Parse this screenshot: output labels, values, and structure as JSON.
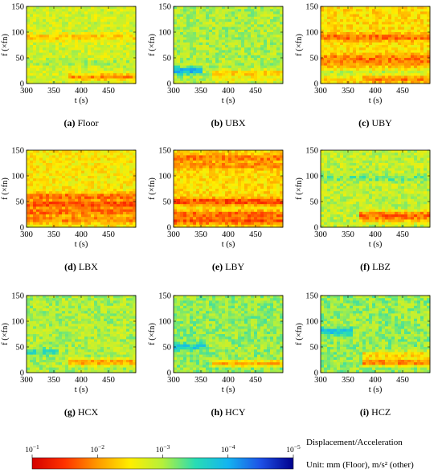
{
  "chart_data": [
    {
      "type": "heatmap",
      "id": "a",
      "caption_letter": "(a)",
      "caption_name": "Floor",
      "xlabel": "t (s)",
      "ylabel": "f (×fn)",
      "xlim": [
        300,
        500
      ],
      "ylim": [
        0,
        150
      ],
      "x_ticks": [
        "300",
        "350",
        "400",
        "450"
      ],
      "y_ticks": [
        "0",
        "50",
        "100",
        "150"
      ],
      "base_level": 2.8,
      "bands": [
        {
          "f": 90,
          "delta": -0.6
        },
        {
          "f": 13,
          "delta": -0.9,
          "t_from": 375
        },
        {
          "f": 40,
          "delta": 0.3
        }
      ]
    },
    {
      "type": "heatmap",
      "id": "b",
      "caption_letter": "(b)",
      "caption_name": "UBX",
      "xlabel": "t (s)",
      "ylabel": "f (×fn)",
      "xlim": [
        300,
        500
      ],
      "ylim": [
        0,
        150
      ],
      "x_ticks": [
        "300",
        "350",
        "400",
        "450"
      ],
      "y_ticks": [
        "0",
        "50",
        "100",
        "150"
      ],
      "base_level": 3.0,
      "bands": [
        {
          "f": 20,
          "delta": -0.8,
          "t_from": 370
        },
        {
          "f": 8,
          "delta": -0.4,
          "t_from": 370
        },
        {
          "f": 25,
          "delta": 1.2,
          "t_to": 355
        }
      ]
    },
    {
      "type": "heatmap",
      "id": "c",
      "caption_letter": "(c)",
      "caption_name": "UBY",
      "xlabel": "t (s)",
      "ylabel": "f (×fn)",
      "xlim": [
        300,
        500
      ],
      "ylim": [
        0,
        150
      ],
      "x_ticks": [
        "300",
        "350",
        "400",
        "450"
      ],
      "y_ticks": [
        "0",
        "50",
        "100",
        "150"
      ],
      "base_level": 2.4,
      "bands": [
        {
          "f": 90,
          "delta": -0.8
        },
        {
          "f": 50,
          "delta": -0.6
        },
        {
          "f": 40,
          "delta": -0.5
        },
        {
          "f": 20,
          "delta": 0.6
        },
        {
          "f": 10,
          "delta": -0.7,
          "t_from": 375
        }
      ]
    },
    {
      "type": "heatmap",
      "id": "d",
      "caption_letter": "(d)",
      "caption_name": "LBX",
      "xlabel": "t (s)",
      "ylabel": "f (×fn)",
      "xlim": [
        300,
        500
      ],
      "ylim": [
        0,
        150
      ],
      "x_ticks": [
        "300",
        "350",
        "400",
        "450"
      ],
      "y_ticks": [
        "0",
        "50",
        "100",
        "150"
      ],
      "base_level": 2.5,
      "bands": [
        {
          "f": 60,
          "delta": -0.9
        },
        {
          "f": 45,
          "delta": -1.1
        },
        {
          "f": 30,
          "delta": -0.9
        },
        {
          "f": 15,
          "delta": -0.7
        }
      ]
    },
    {
      "type": "heatmap",
      "id": "e",
      "caption_letter": "(e)",
      "caption_name": "LBY",
      "xlabel": "t (s)",
      "ylabel": "f (×fn)",
      "xlim": [
        300,
        500
      ],
      "ylim": [
        0,
        150
      ],
      "x_ticks": [
        "300",
        "350",
        "400",
        "450"
      ],
      "y_ticks": [
        "0",
        "50",
        "100",
        "150"
      ],
      "base_level": 2.4,
      "bands": [
        {
          "f": 135,
          "delta": -0.7
        },
        {
          "f": 120,
          "delta": -0.5
        },
        {
          "f": 50,
          "delta": -1.0
        },
        {
          "f": 25,
          "delta": -0.8
        },
        {
          "f": 12,
          "delta": -0.8
        }
      ]
    },
    {
      "type": "heatmap",
      "id": "f",
      "caption_letter": "(f)",
      "caption_name": "LBZ",
      "xlabel": "t (s)",
      "ylabel": "f (×fn)",
      "xlim": [
        300,
        500
      ],
      "ylim": [
        0,
        150
      ],
      "x_ticks": [
        "300",
        "350",
        "400",
        "450"
      ],
      "y_ticks": [
        "0",
        "50",
        "100",
        "150"
      ],
      "base_level": 2.9,
      "bands": [
        {
          "f": 25,
          "delta": -1.2,
          "t_from": 370
        },
        {
          "f": 15,
          "delta": -0.9,
          "t_from": 370
        },
        {
          "f": 95,
          "delta": 0.4
        }
      ]
    },
    {
      "type": "heatmap",
      "id": "g",
      "caption_letter": "(g)",
      "caption_name": "HCX",
      "xlabel": "t (s)",
      "ylabel": "f (×fn)",
      "xlim": [
        300,
        500
      ],
      "ylim": [
        0,
        150
      ],
      "x_ticks": [
        "300",
        "350",
        "400",
        "450"
      ],
      "y_ticks": [
        "0",
        "50",
        "100",
        "150"
      ],
      "base_level": 3.0,
      "bands": [
        {
          "f": 20,
          "delta": -1.1,
          "t_from": 375
        },
        {
          "f": 40,
          "delta": 0.6,
          "t_to": 360
        }
      ]
    },
    {
      "type": "heatmap",
      "id": "h",
      "caption_letter": "(h)",
      "caption_name": "HCY",
      "xlabel": "t (s)",
      "ylabel": "f (×fn)",
      "xlim": [
        300,
        500
      ],
      "ylim": [
        0,
        150
      ],
      "x_ticks": [
        "300",
        "350",
        "400",
        "450"
      ],
      "y_ticks": [
        "0",
        "50",
        "100",
        "150"
      ],
      "base_level": 3.1,
      "bands": [
        {
          "f": 18,
          "delta": -1.1,
          "t_from": 370
        },
        {
          "f": 50,
          "delta": 0.7,
          "t_to": 360
        }
      ]
    },
    {
      "type": "heatmap",
      "id": "i",
      "caption_letter": "(i)",
      "caption_name": "HCZ",
      "xlabel": "t (s)",
      "ylabel": "f (×fn)",
      "xlim": [
        300,
        500
      ],
      "ylim": [
        0,
        150
      ],
      "x_ticks": [
        "300",
        "350",
        "400",
        "450"
      ],
      "y_ticks": [
        "0",
        "50",
        "100",
        "150"
      ],
      "base_level": 3.1,
      "bands": [
        {
          "f": 20,
          "delta": -1.5,
          "t_from": 375
        },
        {
          "f": 35,
          "delta": -0.9,
          "t_from": 375
        },
        {
          "f": 80,
          "delta": 0.8,
          "t_to": 360
        }
      ]
    }
  ],
  "colorbar": {
    "title": "Displacement/Acceleration",
    "unit_text": "Unit: mm (Floor), m/s² (other)",
    "tick_labels": [
      {
        "base": "10",
        "exp": "−1",
        "value": 0.1
      },
      {
        "base": "10",
        "exp": "−2",
        "value": 0.01
      },
      {
        "base": "10",
        "exp": "−3",
        "value": 0.001
      },
      {
        "base": "10",
        "exp": "−4",
        "value": 0.0001
      },
      {
        "base": "10",
        "exp": "−5",
        "value": 1e-05
      }
    ],
    "colors": [
      "#d40000",
      "#ff3300",
      "#ff9900",
      "#ffee00",
      "#b4f03c",
      "#28dcb4",
      "#14b4f0",
      "#1e50e6",
      "#00008c"
    ]
  }
}
